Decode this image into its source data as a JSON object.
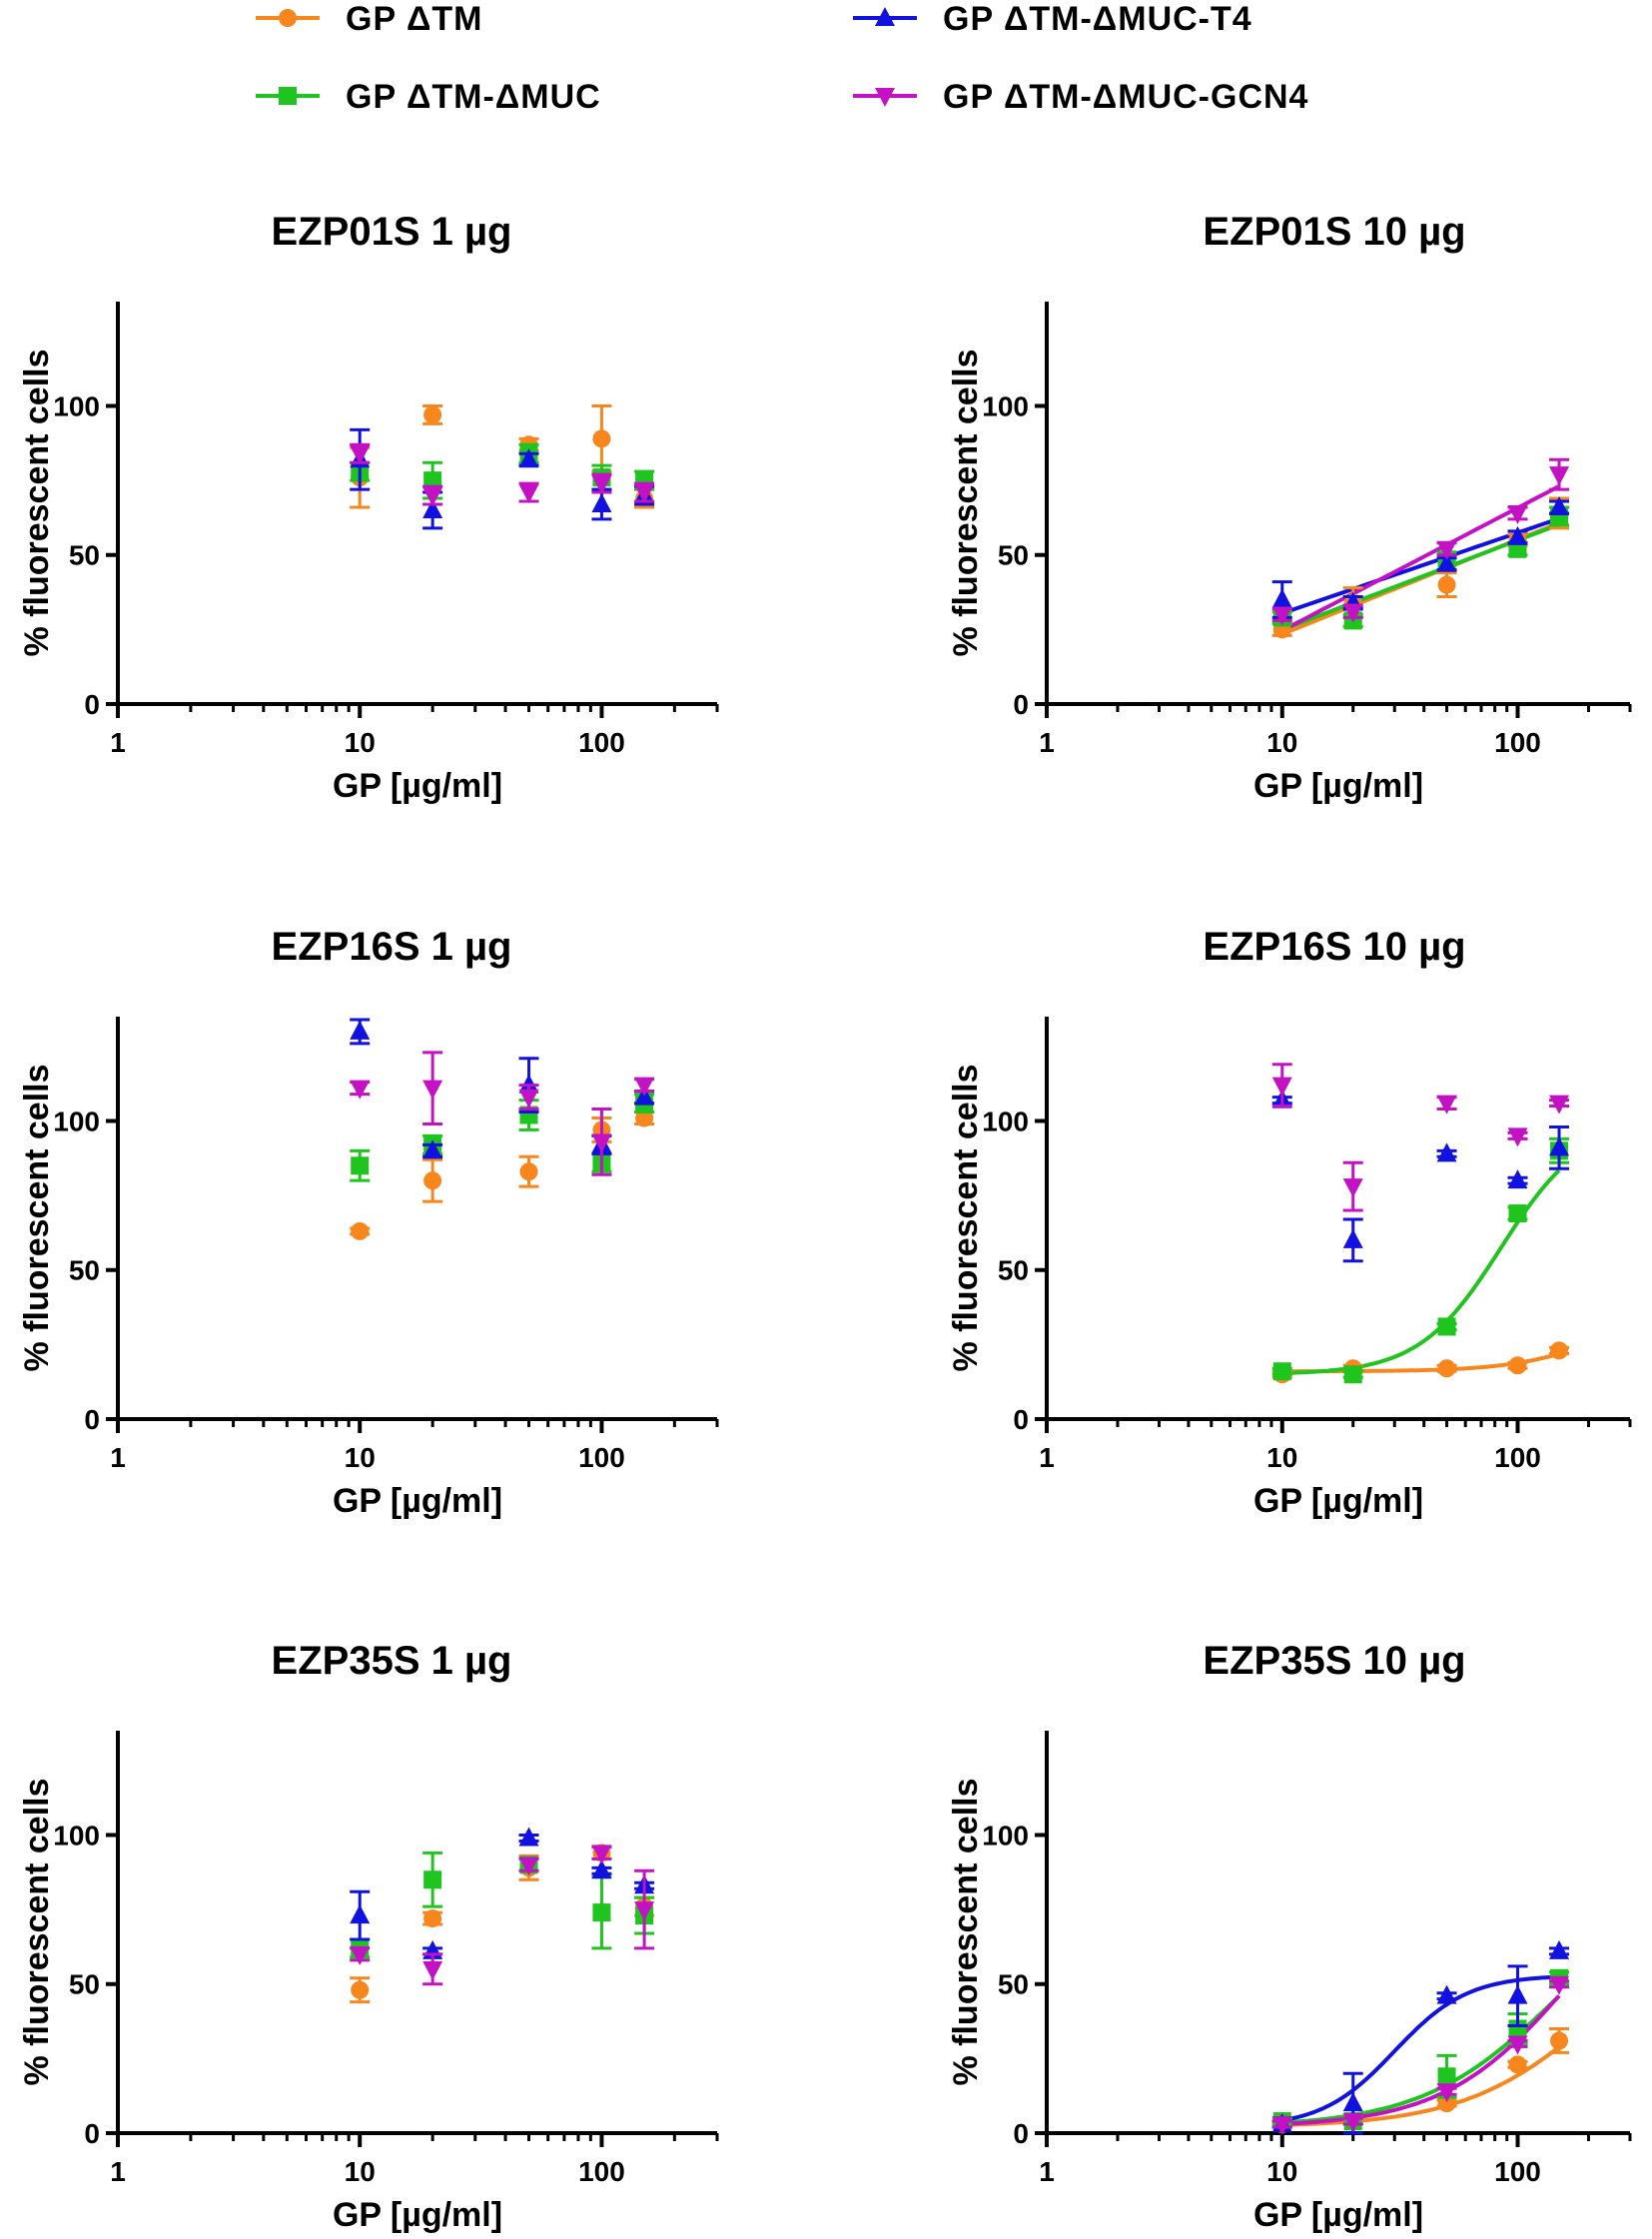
{
  "legend": [
    {
      "label": "GP ΔTM",
      "color": "#f7861d",
      "marker": "circle"
    },
    {
      "label": "GP ΔTM-ΔMUC",
      "color": "#1fc41f",
      "marker": "square"
    },
    {
      "label": "GP ΔTM-ΔMUC-T4",
      "color": "#1212e0",
      "marker": "triangle-up"
    },
    {
      "label": "GP ΔTM-ΔMUC-GCN4",
      "color": "#c312c3",
      "marker": "triangle-down"
    }
  ],
  "chart_data": [
    {
      "type": "scatter",
      "title": "EZP01S 1 µg",
      "xlabel": "GP [µg/ml]",
      "ylabel": "% fluorescent cells",
      "xscale": "log",
      "xlim": [
        1,
        300
      ],
      "ylim": [
        0,
        135
      ],
      "xticks": [
        1,
        10,
        100
      ],
      "xticklabels": [
        "1",
        "10",
        "100"
      ],
      "yticks": [
        0,
        50,
        100
      ],
      "yticklabels": [
        "0",
        "50",
        "100"
      ],
      "x": [
        10,
        20,
        50,
        100,
        150
      ],
      "series": [
        {
          "name": "GP ΔTM",
          "values": [
            76,
            97,
            87,
            89,
            69
          ],
          "errors": [
            10,
            3,
            2,
            11,
            3
          ],
          "fit": false
        },
        {
          "name": "GP ΔTM-ΔMUC",
          "values": [
            78,
            75,
            84,
            76,
            75
          ],
          "errors": [
            3,
            6,
            3,
            4,
            3
          ],
          "fit": false
        },
        {
          "name": "GP ΔTM-ΔMUC-T4",
          "values": [
            82,
            65,
            82,
            67,
            70
          ],
          "errors": [
            10,
            6,
            2,
            5,
            3
          ],
          "fit": false
        },
        {
          "name": "GP ΔTM-ΔMUC-GCN4",
          "values": [
            84,
            70,
            71,
            74,
            71
          ],
          "errors": [
            3,
            3,
            3,
            3,
            3
          ],
          "fit": false
        }
      ]
    },
    {
      "type": "line",
      "title": "EZP01S 10 µg",
      "xlabel": "GP [µg/ml]",
      "ylabel": "% fluorescent cells",
      "xscale": "log",
      "xlim": [
        1,
        300
      ],
      "ylim": [
        0,
        135
      ],
      "xticks": [
        1,
        10,
        100
      ],
      "xticklabels": [
        "1",
        "10",
        "100"
      ],
      "yticks": [
        0,
        50,
        100
      ],
      "yticklabels": [
        "0",
        "50",
        "100"
      ],
      "x": [
        10,
        20,
        50,
        100,
        150
      ],
      "series": [
        {
          "name": "GP ΔTM",
          "values": [
            25,
            34,
            40,
            55,
            64
          ],
          "errors": [
            2,
            5,
            4,
            2,
            5
          ],
          "fit": true,
          "fit_type": "linear"
        },
        {
          "name": "GP ΔTM-ΔMUC",
          "values": [
            29,
            28,
            48,
            52,
            63
          ],
          "errors": [
            2,
            2,
            3,
            2,
            3
          ],
          "fit": true,
          "fit_type": "linear"
        },
        {
          "name": "GP ΔTM-ΔMUC-T4",
          "values": [
            35,
            34,
            47,
            56,
            66
          ],
          "errors": [
            6,
            2,
            2,
            2,
            2
          ],
          "fit": true,
          "fit_type": "linear"
        },
        {
          "name": "GP ΔTM-ΔMUC-GCN4",
          "values": [
            30,
            31,
            52,
            64,
            77
          ],
          "errors": [
            2,
            2,
            2,
            2,
            5
          ],
          "fit": true,
          "fit_type": "linear"
        }
      ]
    },
    {
      "type": "scatter",
      "title": "EZP16S 1 µg",
      "xlabel": "GP [µg/ml]",
      "ylabel": "% fluorescent cells",
      "xscale": "log",
      "xlim": [
        1,
        300
      ],
      "ylim": [
        0,
        135
      ],
      "xticks": [
        1,
        10,
        100
      ],
      "xticklabels": [
        "1",
        "10",
        "100"
      ],
      "yticks": [
        0,
        50,
        100
      ],
      "yticklabels": [
        "0",
        "50",
        "100"
      ],
      "x": [
        10,
        20,
        50,
        100,
        150
      ],
      "series": [
        {
          "name": "GP ΔTM",
          "values": [
            63,
            80,
            83,
            97,
            101
          ],
          "errors": [
            1,
            7,
            5,
            4,
            2
          ],
          "fit": false
        },
        {
          "name": "GP ΔTM-ΔMUC",
          "values": [
            85,
            92,
            102,
            86,
            106
          ],
          "errors": [
            5,
            3,
            5,
            3,
            3
          ],
          "fit": false
        },
        {
          "name": "GP ΔTM-ΔMUC-T4",
          "values": [
            130,
            90,
            112,
            92,
            108
          ],
          "errors": [
            4,
            2,
            9,
            3,
            2
          ],
          "fit": false
        },
        {
          "name": "GP ΔTM-ΔMUC-GCN4",
          "values": [
            111,
            111,
            108,
            93,
            112
          ],
          "errors": [
            2,
            12,
            4,
            11,
            2
          ],
          "fit": false
        }
      ]
    },
    {
      "type": "line",
      "title": "EZP16S 10 µg",
      "xlabel": "GP [µg/ml]",
      "ylabel": "% fluorescent cells",
      "xscale": "log",
      "xlim": [
        1,
        300
      ],
      "ylim": [
        0,
        135
      ],
      "xticks": [
        1,
        10,
        100
      ],
      "xticklabels": [
        "1",
        "10",
        "100"
      ],
      "yticks": [
        0,
        50,
        100
      ],
      "yticklabels": [
        "0",
        "50",
        "100"
      ],
      "x": [
        10,
        20,
        50,
        100,
        150
      ],
      "series": [
        {
          "name": "GP ΔTM",
          "values": [
            15,
            17,
            17,
            18,
            23
          ],
          "errors": [
            1,
            1,
            1,
            1,
            1
          ],
          "fit": true,
          "fit_type": "sigmoid",
          "fit_params": {
            "bottom": 16,
            "top": 40,
            "ec50": 250,
            "hill": 2.2
          }
        },
        {
          "name": "GP ΔTM-ΔMUC",
          "values": [
            16,
            15,
            31,
            69,
            90
          ],
          "errors": [
            1,
            1,
            1,
            2,
            4
          ],
          "fit": true,
          "fit_type": "sigmoid",
          "fit_params": {
            "bottom": 15,
            "top": 100,
            "ec50": 85,
            "hill": 2.5
          }
        },
        {
          "name": "GP ΔTM-ΔMUC-T4",
          "values": [
            107,
            60,
            89,
            80,
            91
          ],
          "errors": [
            1,
            7,
            1,
            1,
            7
          ],
          "fit": false
        },
        {
          "name": "GP ΔTM-ΔMUC-GCN4",
          "values": [
            112,
            78,
            106,
            95,
            106
          ],
          "errors": [
            7,
            8,
            2,
            1,
            1
          ],
          "fit": false
        }
      ]
    },
    {
      "type": "scatter",
      "title": "EZP35S 1 µg",
      "xlabel": "GP [µg/ml]",
      "ylabel": "% fluorescent cells",
      "xscale": "log",
      "xlim": [
        1,
        300
      ],
      "ylim": [
        0,
        135
      ],
      "xticks": [
        1,
        10,
        100
      ],
      "xticklabels": [
        "1",
        "10",
        "100"
      ],
      "yticks": [
        0,
        50,
        100
      ],
      "yticklabels": [
        "0",
        "50",
        "100"
      ],
      "x": [
        10,
        20,
        50,
        100,
        150
      ],
      "series": [
        {
          "name": "GP ΔTM",
          "values": [
            48,
            72,
            89,
            94,
            76
          ],
          "errors": [
            4,
            2,
            4,
            2,
            3
          ],
          "fit": false
        },
        {
          "name": "GP ΔTM-ΔMUC",
          "values": [
            62,
            85,
            90,
            74,
            73
          ],
          "errors": [
            3,
            9,
            2,
            12,
            6
          ],
          "fit": false
        },
        {
          "name": "GP ΔTM-ΔMUC-T4",
          "values": [
            73,
            61,
            99,
            88,
            83
          ],
          "errors": [
            8,
            1,
            1,
            1,
            1
          ],
          "fit": false
        },
        {
          "name": "GP ΔTM-ΔMUC-GCN4",
          "values": [
            60,
            55,
            90,
            94,
            75
          ],
          "errors": [
            2,
            5,
            2,
            2,
            13
          ],
          "fit": false
        }
      ]
    },
    {
      "type": "line",
      "title": "EZP35S 10 µg",
      "xlabel": "GP [µg/ml]",
      "ylabel": "% fluorescent cells",
      "xscale": "log",
      "xlim": [
        1,
        300
      ],
      "ylim": [
        0,
        135
      ],
      "xticks": [
        1,
        10,
        100
      ],
      "xticklabels": [
        "1",
        "10",
        "100"
      ],
      "yticks": [
        0,
        50,
        100
      ],
      "yticklabels": [
        "0",
        "50",
        "100"
      ],
      "x": [
        10,
        20,
        50,
        100,
        150
      ],
      "series": [
        {
          "name": "GP ΔTM",
          "values": [
            3,
            4,
            10,
            23,
            31
          ],
          "errors": [
            1,
            1,
            1,
            1,
            4
          ],
          "fit": true,
          "fit_type": "sigmoid",
          "fit_params": {
            "bottom": 2,
            "top": 80,
            "ec50": 230,
            "hill": 1.5
          }
        },
        {
          "name": "GP ΔTM-ΔMUC",
          "values": [
            4,
            4,
            19,
            35,
            52
          ],
          "errors": [
            1,
            1,
            7,
            5,
            2
          ],
          "fit": true,
          "fit_type": "sigmoid",
          "fit_params": {
            "bottom": 2,
            "top": 90,
            "ec50": 150,
            "hill": 1.5
          }
        },
        {
          "name": "GP ΔTM-ΔMUC-T4",
          "values": [
            3,
            10,
            46,
            46,
            61
          ],
          "errors": [
            1,
            10,
            1,
            10,
            1
          ],
          "fit": true,
          "fit_type": "sigmoid",
          "fit_params": {
            "bottom": 2,
            "top": 53,
            "ec50": 30,
            "hill": 2.8
          }
        },
        {
          "name": "GP ΔTM-ΔMUC-GCN4",
          "values": [
            3,
            4,
            14,
            30,
            50
          ],
          "errors": [
            1,
            1,
            1,
            1,
            1
          ],
          "fit": true,
          "fit_type": "sigmoid",
          "fit_params": {
            "bottom": 2,
            "top": 100,
            "ec50": 170,
            "hill": 1.6
          }
        }
      ]
    }
  ]
}
